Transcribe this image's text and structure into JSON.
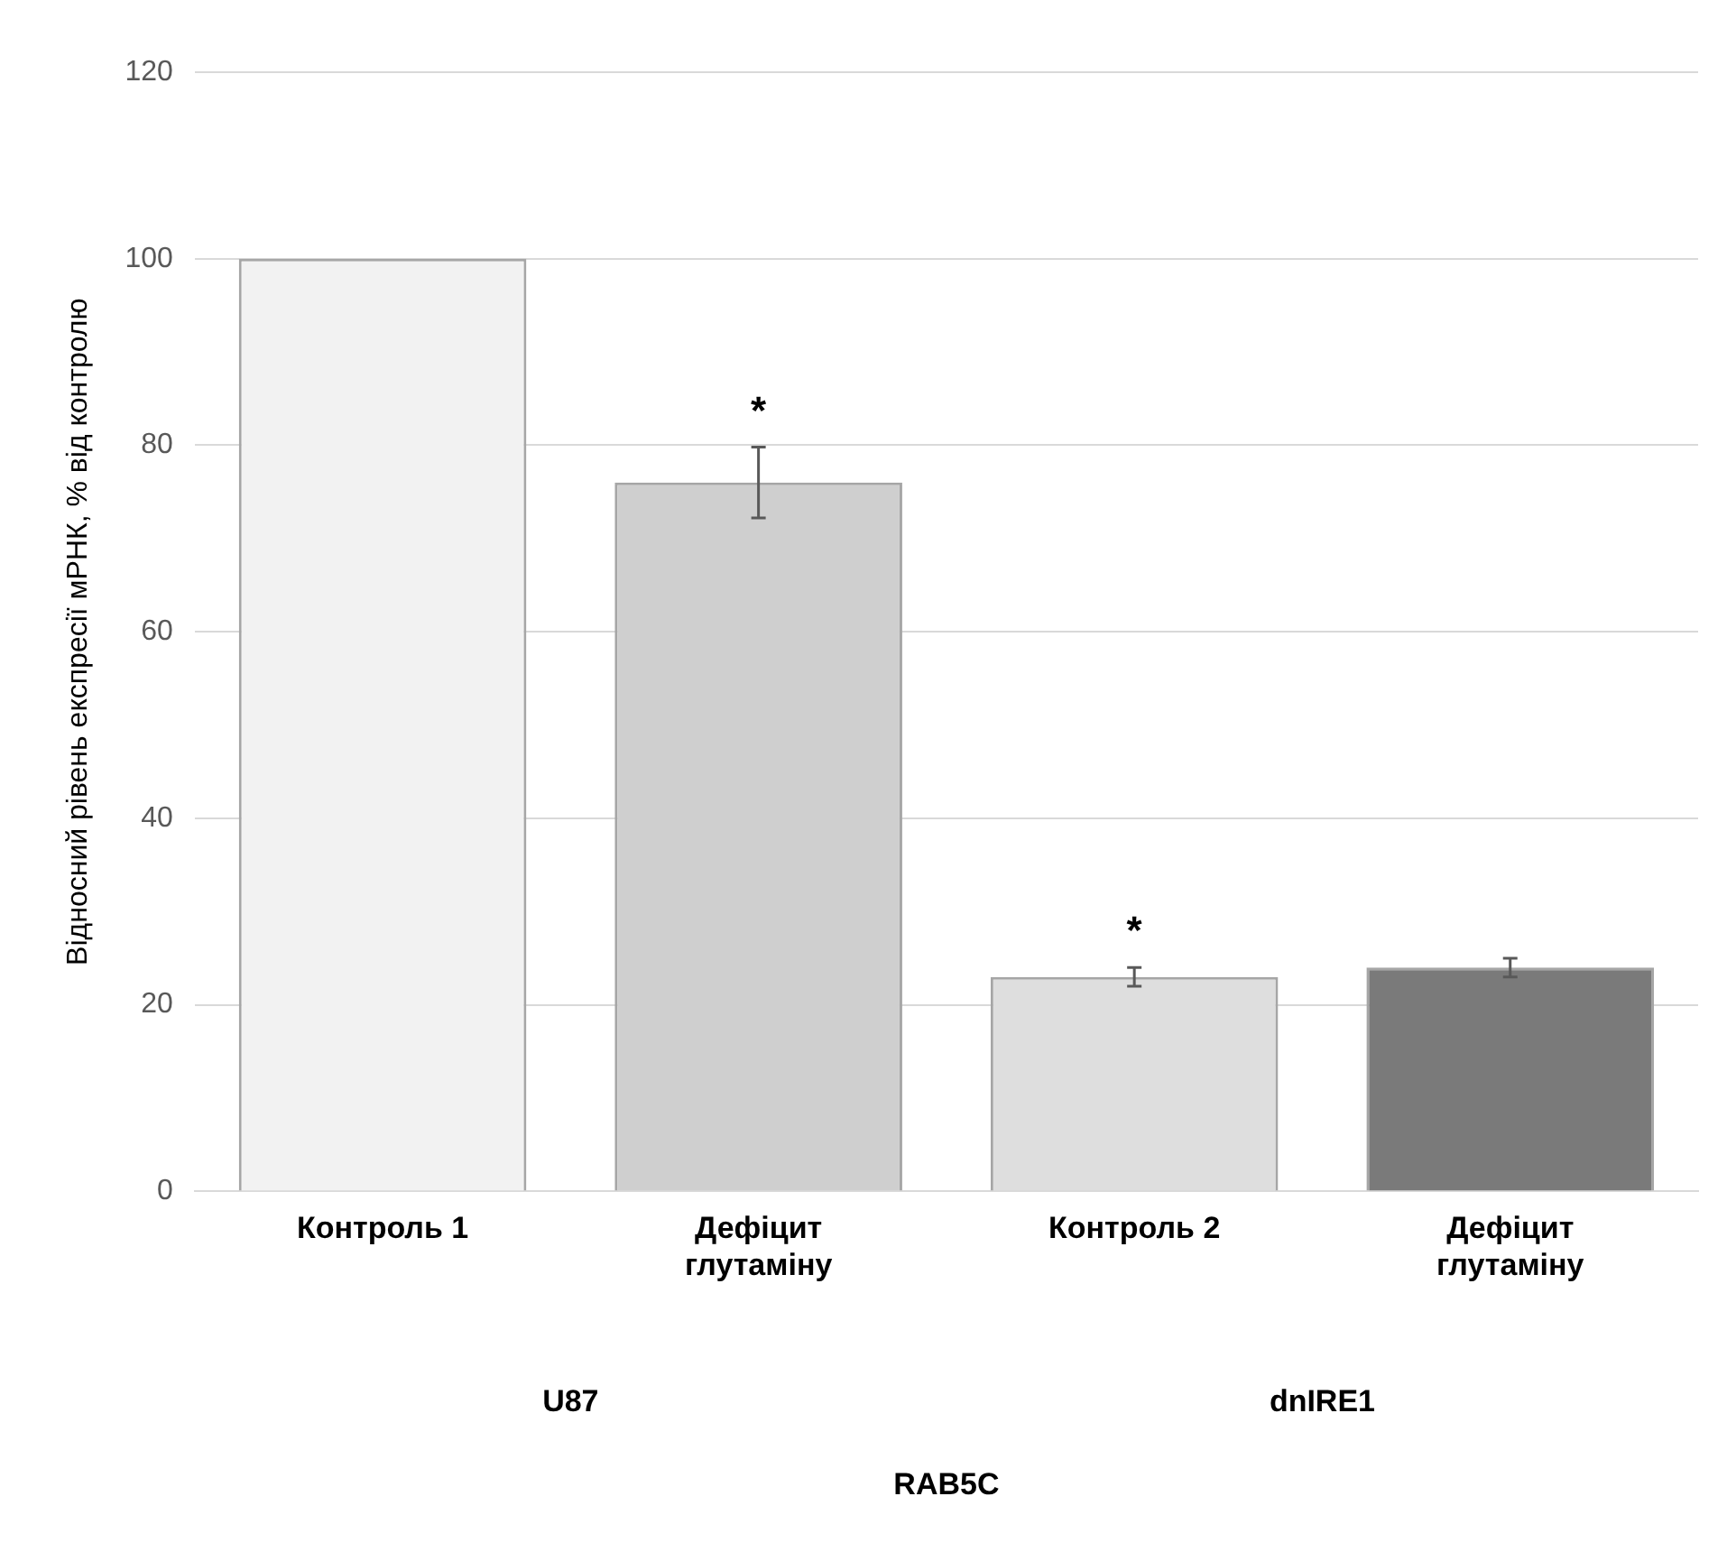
{
  "chart_data": {
    "type": "bar",
    "ylabel": "Відносний рівень експресії мРНК, % від контролю",
    "value_labels": [
      null,
      "*",
      "*",
      null
    ],
    "categories": [
      "Контроль 1",
      "Дефіцит глутаміну",
      "Контроль 2",
      "Дефіцит глутаміну"
    ],
    "values": [
      100,
      76,
      23,
      24
    ],
    "colors": [
      "#f2f2f2",
      "#cfcfcf",
      "#dedede",
      "#7a7a7a"
    ],
    "errors": [
      null,
      3.8,
      1,
      1
    ],
    "ylim": [
      0,
      120
    ],
    "yticks": [
      0,
      20,
      40,
      60,
      80,
      100,
      120
    ],
    "grid": "y",
    "annotations": [
      "U87",
      "dnIRE1",
      "RAB5C"
    ]
  }
}
